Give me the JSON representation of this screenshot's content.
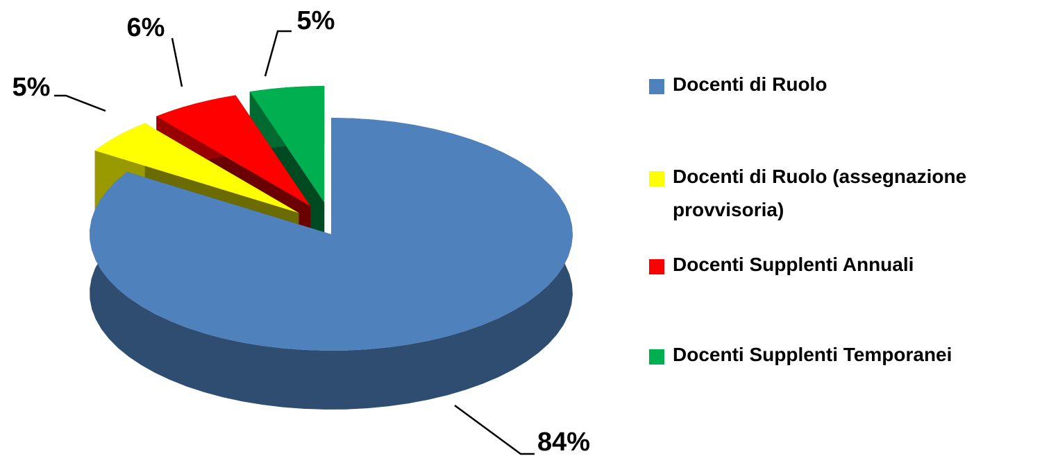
{
  "chart_data": {
    "type": "pie",
    "categories": [
      "Docenti di Ruolo",
      "Docenti di Ruolo  (assegnazione provvisoria)",
      "Docenti Supplenti Annuali",
      "Docenti Supplenti Temporanei"
    ],
    "values": [
      84,
      5,
      6,
      5
    ],
    "value_labels": [
      "84%",
      "5%",
      "6%",
      "5%"
    ],
    "colors": [
      "#4f81bd",
      "#ffff00",
      "#ff0000",
      "#00b050"
    ],
    "legend": "right"
  }
}
